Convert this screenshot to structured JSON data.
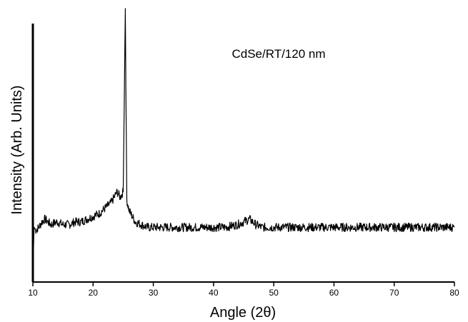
{
  "chart_data": {
    "type": "line",
    "title": "",
    "annotation": "CdSe/RT/120 nm",
    "xlabel": "Angle (2θ)",
    "ylabel": "Intensity (Arb. Units)",
    "xlim": [
      10,
      80
    ],
    "ylim": [
      0,
      100
    ],
    "x_ticks": [
      10,
      20,
      30,
      40,
      50,
      60,
      70,
      80
    ],
    "x_tick_labels": [
      "10",
      "20",
      "30",
      "40",
      "50",
      "60",
      "70",
      "80"
    ],
    "grid": false,
    "y_tick_labels_shown": false,
    "line_color": "#000000",
    "series": [
      {
        "x": [
          10.0,
          10.2,
          10.5,
          11,
          11.5,
          12,
          13,
          14,
          15,
          16,
          17,
          18,
          19,
          20,
          21,
          22,
          23,
          23.5,
          24,
          24.5,
          25,
          25.2,
          25.35,
          25.45,
          25.6,
          25.8,
          26,
          26.5,
          27,
          28,
          29,
          30,
          32,
          34,
          36,
          38,
          40,
          42,
          44,
          45,
          46,
          47,
          48,
          50,
          52,
          54,
          56,
          58,
          60,
          62,
          64,
          66,
          68,
          70,
          72,
          74,
          76,
          78,
          80
        ],
        "y": [
          3,
          20,
          19,
          20,
          22,
          23,
          21,
          22,
          21,
          21,
          22,
          22,
          23,
          24,
          25,
          27,
          29,
          31,
          33,
          31,
          33,
          70,
          100,
          70,
          30,
          28,
          26,
          24,
          22,
          21,
          20,
          20,
          20,
          20,
          20,
          20,
          20,
          20,
          21,
          22,
          23,
          21,
          20,
          20,
          20,
          20,
          20,
          20,
          20,
          20,
          20,
          20,
          20,
          20,
          20,
          20,
          20,
          20,
          20
        ]
      }
    ]
  }
}
